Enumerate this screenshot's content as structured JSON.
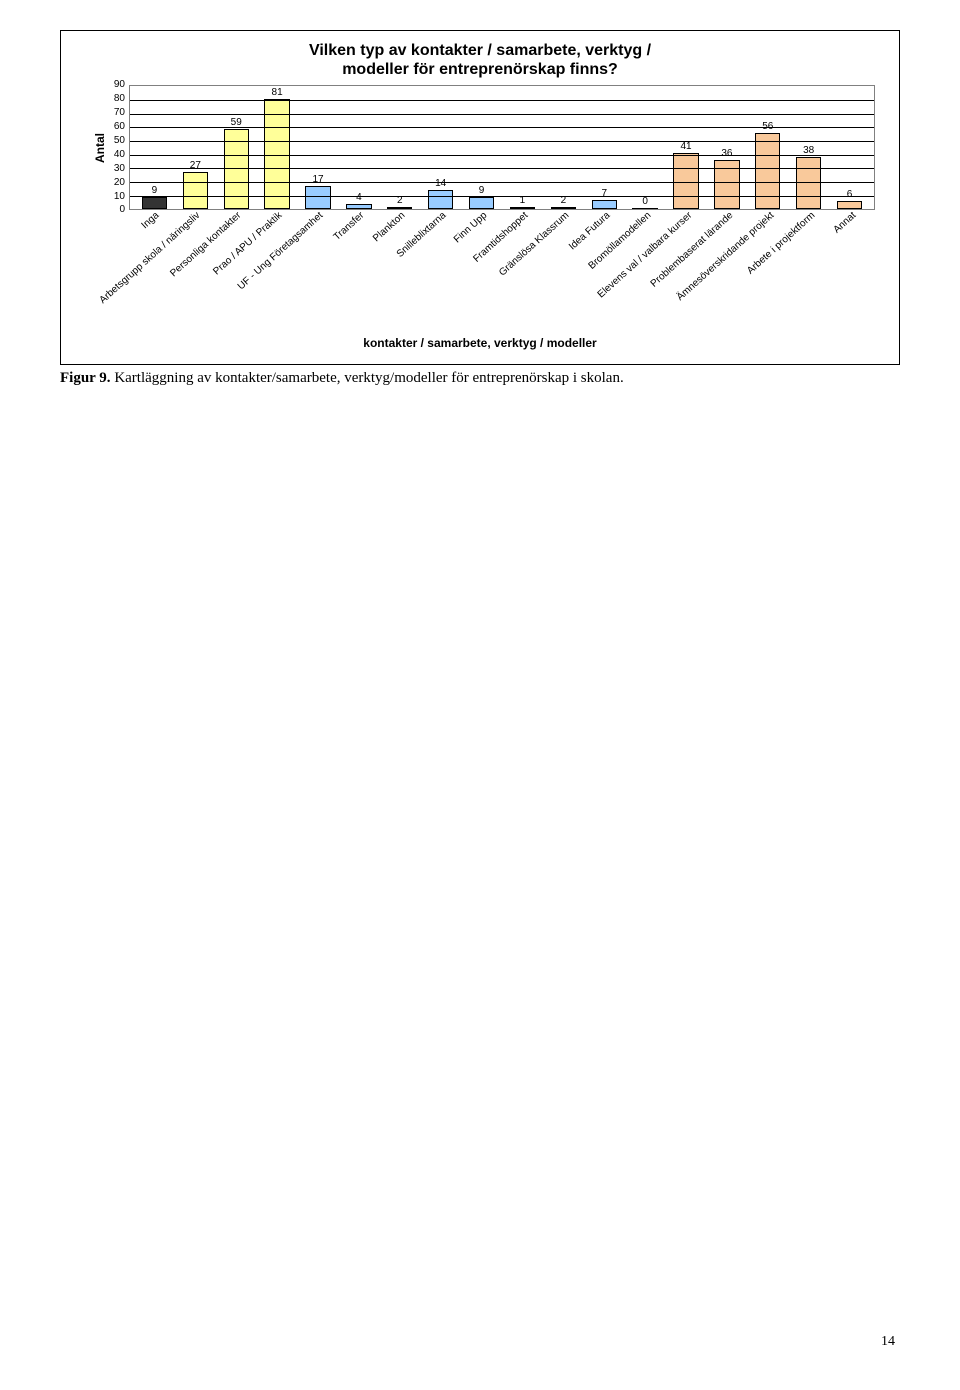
{
  "chart": {
    "type": "bar",
    "title_line1": "Vilken typ av kontakter / samarbete, verktyg /",
    "title_line2": "modeller för entreprenörskap finns?",
    "title_fontsize": 16,
    "ylabel": "Antal",
    "xaxis_title": "kontakter / samarbete, verktyg / modeller",
    "ylim": [
      0,
      90
    ],
    "ytick_step": 10,
    "yticks": [
      0,
      10,
      20,
      30,
      40,
      50,
      60,
      70,
      80,
      90
    ],
    "background_color": "#ffffff",
    "grid_color": "#000000",
    "border_color": "#808080",
    "bar_border": "#000000",
    "bar_width": 0.62,
    "label_fontsize": 10,
    "series": [
      {
        "label": "Inga",
        "value": 9,
        "color": "#333333"
      },
      {
        "label": "Arbetsgrupp skola / näringsliv",
        "value": 27,
        "color": "#ffff99"
      },
      {
        "label": "Personliga kontakter",
        "value": 59,
        "color": "#ffff99"
      },
      {
        "label": "Prao / APU / Praktik",
        "value": 81,
        "color": "#ffff99"
      },
      {
        "label": "UF - Ung Företagsamhet",
        "value": 17,
        "color": "#99ccff"
      },
      {
        "label": "Transfer",
        "value": 4,
        "color": "#99ccff"
      },
      {
        "label": "Plankton",
        "value": 2,
        "color": "#99ccff"
      },
      {
        "label": "Snilleblixtarna",
        "value": 14,
        "color": "#99ccff"
      },
      {
        "label": "Finn Upp",
        "value": 9,
        "color": "#99ccff"
      },
      {
        "label": "Framtidshoppet",
        "value": 1,
        "color": "#99ccff"
      },
      {
        "label": "Gränslösa Klassrum",
        "value": 2,
        "color": "#99ccff"
      },
      {
        "label": "Idea Futura",
        "value": 7,
        "color": "#99ccff"
      },
      {
        "label": "Bromöllamodellen",
        "value": 0,
        "color": "#99ccff"
      },
      {
        "label": "Elevens val / valbara kurser",
        "value": 41,
        "color": "#f9c99b"
      },
      {
        "label": "Problembaserat lärande",
        "value": 36,
        "color": "#f9c99b"
      },
      {
        "label": "Ämnesöverskridande projekt",
        "value": 56,
        "color": "#f9c99b"
      },
      {
        "label": "Arbete i projektform",
        "value": 38,
        "color": "#f9c99b"
      },
      {
        "label": "Annat",
        "value": 6,
        "color": "#f9c99b"
      }
    ]
  },
  "caption": {
    "prefix": "Figur 9.",
    "text": " Kartläggning av kontakter/samarbete, verktyg/modeller för entreprenörskap i skolan."
  },
  "page_number": "14"
}
